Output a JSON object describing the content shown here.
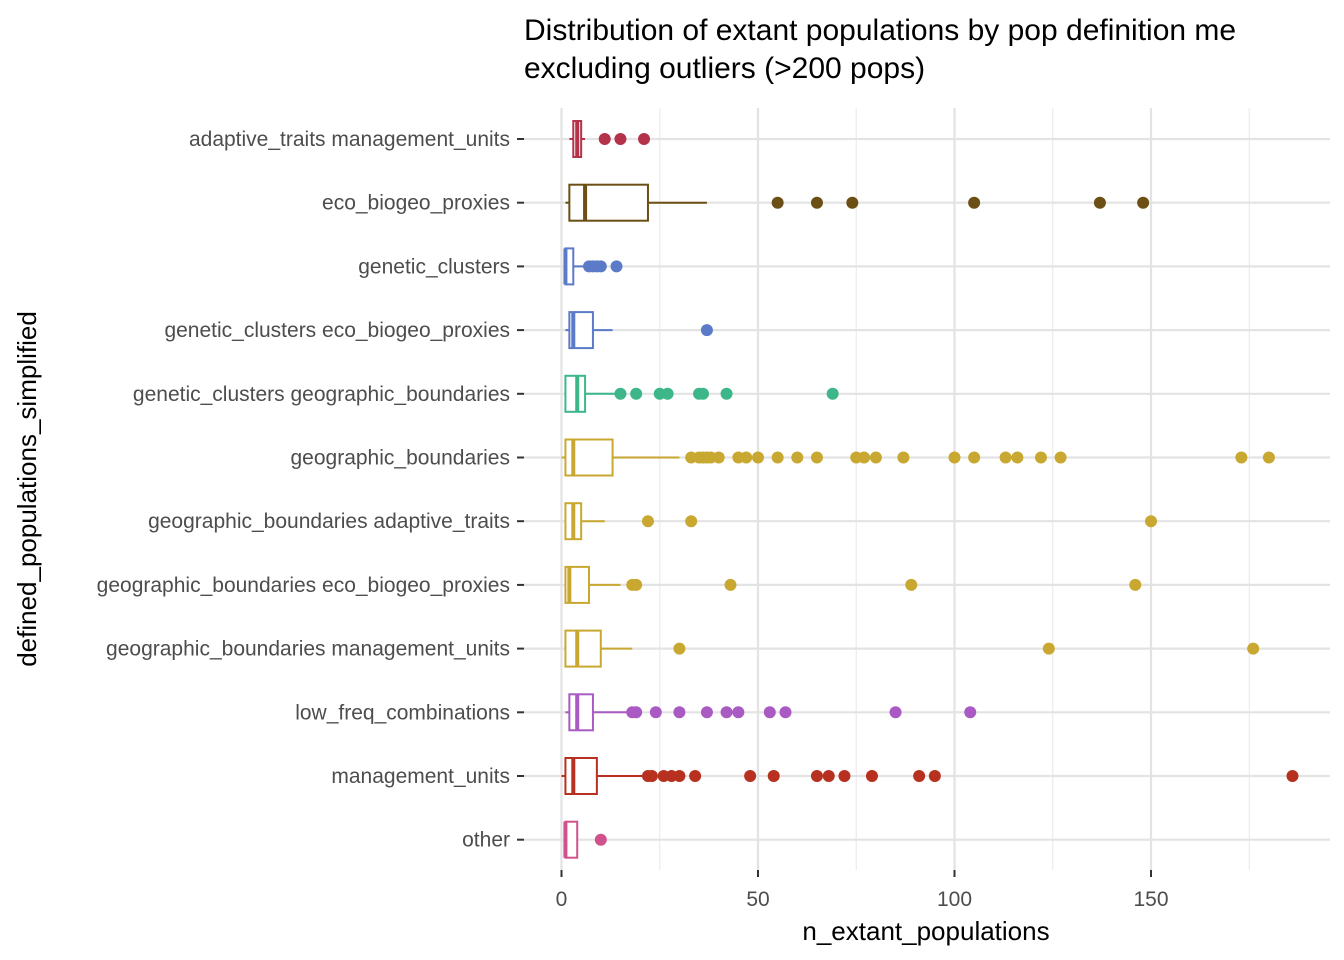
{
  "chart_data": {
    "type": "boxplot",
    "orientation": "horizontal",
    "title_lines": [
      "Distribution of extant populations by pop definition me",
      "excluding outliers (>200 pops)"
    ],
    "xlabel": "n_extant_populations",
    "ylabel": "defined_populations_simplified",
    "xlim": [
      -1,
      195
    ],
    "x_ticks": [
      0,
      50,
      100,
      150
    ],
    "x_minor": [
      25,
      75,
      125,
      175
    ],
    "grid": true,
    "legend": "none",
    "categories": [
      {
        "name": "other",
        "color": "#d0528c",
        "min": 1,
        "q1": 1,
        "median": 1,
        "q3": 4,
        "max": 4,
        "outliers": [
          10
        ]
      },
      {
        "name": "management_units",
        "color": "#b8301f",
        "min": 0,
        "q1": 1,
        "median": 3,
        "q3": 9,
        "max": 21,
        "outliers": [
          22,
          23,
          26,
          28,
          30,
          34,
          48,
          54,
          65,
          68,
          72,
          79,
          91,
          95,
          186
        ]
      },
      {
        "name": "low_freq_combinations",
        "color": "#a95ac3",
        "min": 1,
        "q1": 2,
        "median": 4,
        "q3": 8,
        "max": 17,
        "outliers": [
          18,
          19,
          24,
          30,
          37,
          42,
          45,
          53,
          57,
          85,
          104
        ]
      },
      {
        "name": "geographic_boundaries management_units",
        "color": "#c9a831",
        "min": 1,
        "q1": 1,
        "median": 4,
        "q3": 10,
        "max": 18,
        "outliers": [
          30,
          124,
          176
        ]
      },
      {
        "name": "geographic_boundaries eco_biogeo_proxies",
        "color": "#c9a831",
        "min": 1,
        "q1": 1,
        "median": 2,
        "q3": 7,
        "max": 15,
        "outliers": [
          18,
          19,
          43,
          89,
          146
        ]
      },
      {
        "name": "geographic_boundaries adaptive_traits",
        "color": "#c9a831",
        "min": 1,
        "q1": 1,
        "median": 3,
        "q3": 5,
        "max": 11,
        "outliers": [
          22,
          33,
          150
        ]
      },
      {
        "name": "geographic_boundaries",
        "color": "#c9a831",
        "min": 0,
        "q1": 1,
        "median": 3,
        "q3": 13,
        "max": 30,
        "outliers": [
          33,
          35,
          36,
          37,
          38,
          40,
          45,
          47,
          50,
          55,
          60,
          65,
          75,
          77,
          80,
          87,
          100,
          105,
          113,
          116,
          122,
          127,
          173,
          180
        ]
      },
      {
        "name": "genetic_clusters geographic_boundaries",
        "color": "#3db68a",
        "min": 1,
        "q1": 1,
        "median": 4,
        "q3": 6,
        "max": 14,
        "outliers": [
          15,
          19,
          25,
          27,
          35,
          36,
          42,
          69
        ]
      },
      {
        "name": "genetic_clusters eco_biogeo_proxies",
        "color": "#5b7bc9",
        "min": 1,
        "q1": 2,
        "median": 3,
        "q3": 8,
        "max": 13,
        "outliers": [
          37
        ]
      },
      {
        "name": "genetic_clusters",
        "color": "#5b7bc9",
        "min": 1,
        "q1": 1,
        "median": 1,
        "q3": 3,
        "max": 6,
        "outliers": [
          7,
          8,
          9,
          10,
          14
        ]
      },
      {
        "name": "eco_biogeo_proxies",
        "color": "#6b4f14",
        "min": 1,
        "q1": 2,
        "median": 6,
        "q3": 22,
        "max": 37,
        "outliers": [
          55,
          65,
          74,
          105,
          137,
          148
        ]
      },
      {
        "name": "adaptive_traits management_units",
        "color": "#b5334a",
        "min": 2,
        "q1": 3,
        "median": 4,
        "q3": 5,
        "max": 6,
        "outliers": [
          11,
          15,
          21
        ]
      }
    ]
  }
}
